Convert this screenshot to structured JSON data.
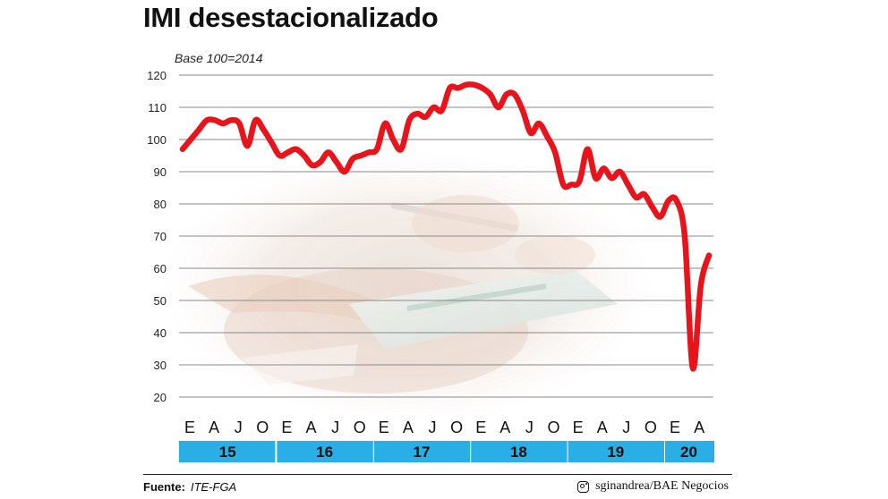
{
  "colors": {
    "line": "#e8141b",
    "year_band": "#29aee6",
    "grid": "#8a8a8a"
  },
  "background_image": "hands-tablet-photo",
  "chart_data": {
    "type": "line",
    "title": "IMI desestacionalizado",
    "subtitle": "Base 100=2014",
    "ylim": [
      20,
      120
    ],
    "yticks": [
      20,
      30,
      40,
      50,
      60,
      70,
      80,
      90,
      100,
      110,
      120
    ],
    "grid": true,
    "x_month_labels": [
      "E",
      "A",
      "J",
      "O",
      "E",
      "A",
      "J",
      "O",
      "E",
      "A",
      "J",
      "O",
      "E",
      "A",
      "J",
      "O",
      "E",
      "A",
      "J",
      "O",
      "E",
      "A"
    ],
    "years": [
      "15",
      "16",
      "17",
      "18",
      "19",
      "20"
    ],
    "x_start": "2015-01",
    "x_end": "2020-06",
    "series": [
      {
        "values": [
          97,
          100,
          103,
          106,
          106,
          105,
          106,
          105,
          98,
          106,
          103,
          99,
          95,
          96,
          97,
          95,
          92,
          93,
          96,
          93,
          90,
          94,
          95,
          96,
          97,
          105,
          100,
          97,
          106,
          108,
          107,
          110,
          109,
          116,
          116,
          117,
          117,
          116,
          114,
          110,
          114,
          114,
          109,
          102,
          105,
          101,
          96,
          86,
          86,
          87,
          97,
          88,
          91,
          88,
          90,
          86,
          82,
          83,
          79,
          76,
          81,
          81,
          70,
          29,
          55,
          64
        ]
      }
    ]
  },
  "footer": {
    "source_label": "Fuente:",
    "source_value": "ITE-FGA",
    "credit": "sginandrea/BAE Negocios"
  }
}
